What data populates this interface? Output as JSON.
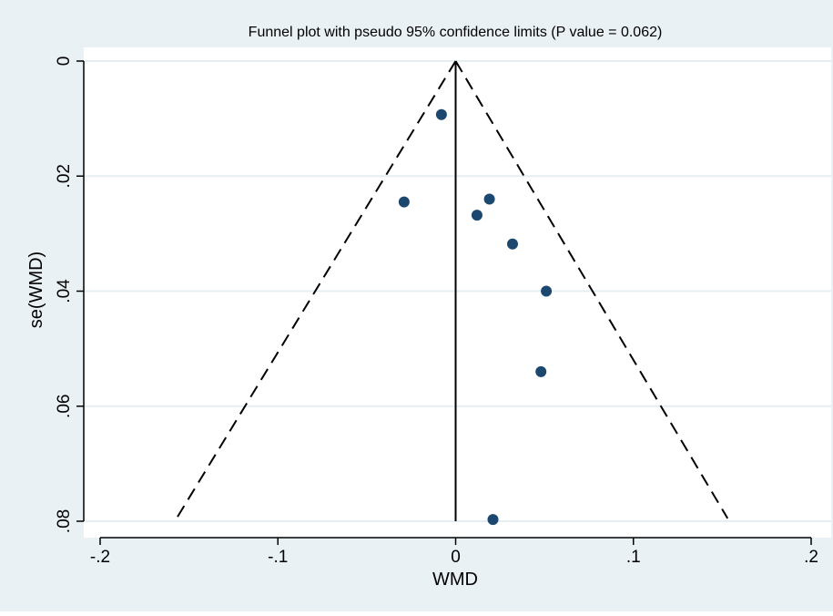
{
  "chart_data": {
    "type": "scatter",
    "title": "Funnel plot with pseudo 95% confidence limits (P value = 0.062)",
    "xlabel": "WMD",
    "ylabel": "se(WMD)",
    "xlim": [
      -0.2,
      0.2
    ],
    "ylim": [
      0,
      0.08
    ],
    "y_reversed": true,
    "grid": "horizontal",
    "x_ticks": [
      {
        "value": -0.2,
        "label": "-.2"
      },
      {
        "value": -0.1,
        "label": "-.1"
      },
      {
        "value": 0.0,
        "label": "0"
      },
      {
        "value": 0.1,
        "label": ".1"
      },
      {
        "value": 0.2,
        "label": ".2"
      }
    ],
    "y_ticks": [
      {
        "value": 0.0,
        "label": "0"
      },
      {
        "value": 0.02,
        "label": ".02"
      },
      {
        "value": 0.04,
        "label": ".04"
      },
      {
        "value": 0.06,
        "label": ".06"
      },
      {
        "value": 0.08,
        "label": ".08"
      }
    ],
    "points": [
      {
        "x": -0.008,
        "y": 0.0093
      },
      {
        "x": -0.029,
        "y": 0.0245
      },
      {
        "x": 0.019,
        "y": 0.024
      },
      {
        "x": 0.012,
        "y": 0.0268
      },
      {
        "x": 0.032,
        "y": 0.0318
      },
      {
        "x": 0.051,
        "y": 0.04
      },
      {
        "x": 0.048,
        "y": 0.054
      },
      {
        "x": 0.021,
        "y": 0.0797
      }
    ],
    "pooled_estimate": 0.0,
    "funnel_apex": {
      "x": 0.0,
      "y": 0.0
    },
    "funnel_limits_at_max_se": {
      "left": -0.157,
      "right": 0.153,
      "se": 0.0795
    },
    "colors": {
      "outer_background": "#e9f1f5",
      "plot_background": "#ffffff",
      "gridline": "#e6eef2",
      "marker": "#1c4870",
      "line": "#000000"
    }
  }
}
